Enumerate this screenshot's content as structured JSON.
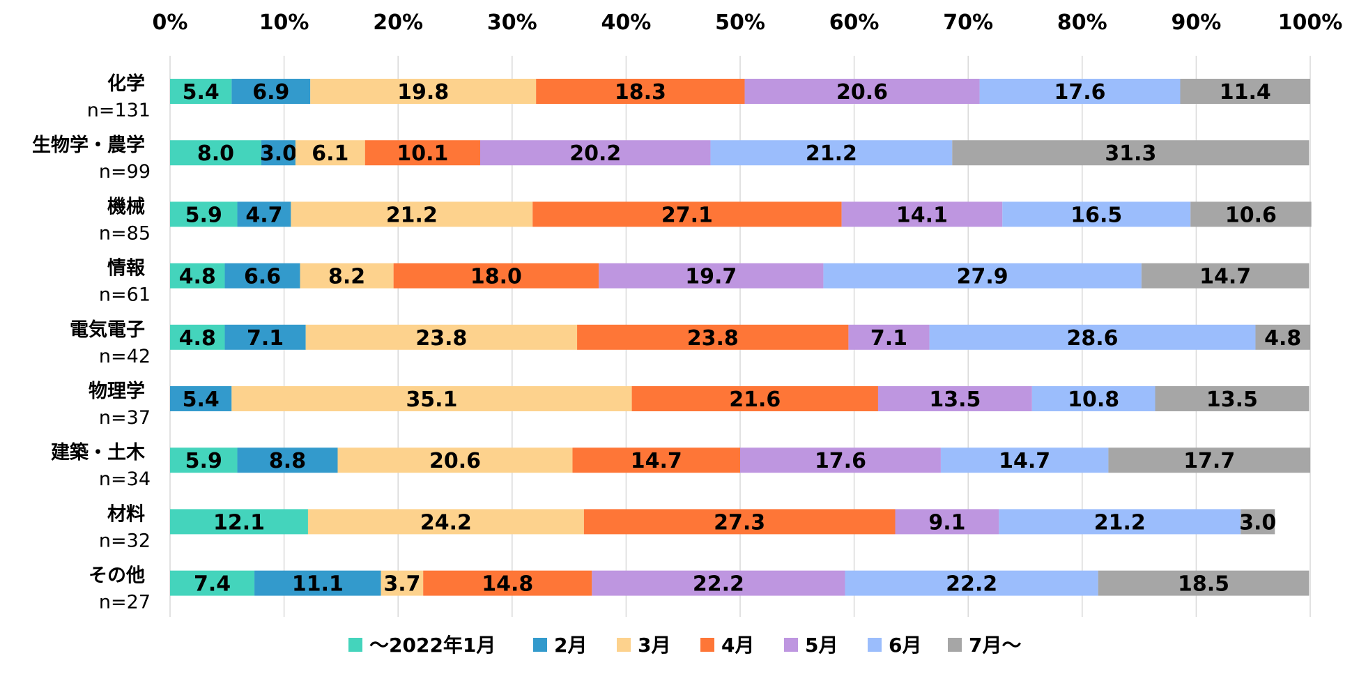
{
  "chart_data": {
    "type": "bar",
    "orientation": "horizontal",
    "stacked": "percent",
    "x_ticks": [
      "0%",
      "10%",
      "20%",
      "30%",
      "40%",
      "50%",
      "60%",
      "70%",
      "80%",
      "90%",
      "100%"
    ],
    "xlim": [
      0,
      100
    ],
    "grid": "vertical",
    "legend_position": "bottom",
    "categories": [
      {
        "name": "化学",
        "n": "n=131"
      },
      {
        "name": "生物学・農学",
        "n": "n=99"
      },
      {
        "name": "機械",
        "n": "n=85"
      },
      {
        "name": "情報",
        "n": "n=61"
      },
      {
        "name": "電気電子",
        "n": "n=42"
      },
      {
        "name": "物理学",
        "n": "n=37"
      },
      {
        "name": "建築・土木",
        "n": "n=34"
      },
      {
        "name": "材料",
        "n": "n=32"
      },
      {
        "name": "その他",
        "n": "n=27"
      }
    ],
    "series": [
      {
        "name": "～2022年1月",
        "color": "#44D4BC",
        "values": [
          5.4,
          8.0,
          5.9,
          4.8,
          4.8,
          0,
          5.9,
          12.1,
          7.4
        ]
      },
      {
        "name": "2月",
        "color": "#339ACC",
        "values": [
          6.9,
          3.0,
          4.7,
          6.6,
          7.1,
          5.4,
          8.8,
          0,
          11.1
        ]
      },
      {
        "name": "3月",
        "color": "#FDD28D",
        "values": [
          19.8,
          6.1,
          21.2,
          8.2,
          23.8,
          35.1,
          20.6,
          24.2,
          3.7
        ]
      },
      {
        "name": "4月",
        "color": "#FE7637",
        "values": [
          18.3,
          10.1,
          27.1,
          18.0,
          23.8,
          21.6,
          14.7,
          27.3,
          14.8
        ]
      },
      {
        "name": "5月",
        "color": "#BE96E0",
        "values": [
          20.6,
          20.2,
          14.1,
          19.7,
          7.1,
          13.5,
          17.6,
          9.1,
          22.2
        ]
      },
      {
        "name": "6月",
        "color": "#9BBDFC",
        "values": [
          17.6,
          21.2,
          16.5,
          27.9,
          28.6,
          10.8,
          14.7,
          21.2,
          22.2
        ]
      },
      {
        "name": "7月～",
        "color": "#A6A6A6",
        "values": [
          11.4,
          31.3,
          10.6,
          14.7,
          4.8,
          13.5,
          17.7,
          3.0,
          18.5
        ]
      }
    ]
  }
}
